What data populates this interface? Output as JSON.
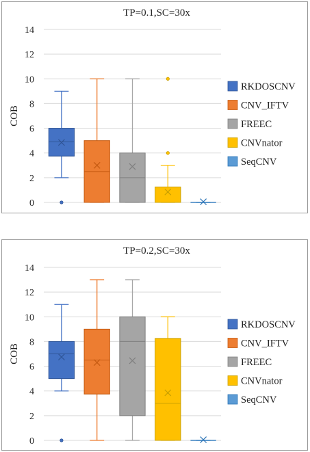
{
  "chart_data": [
    {
      "type": "box",
      "title": "TP=0.1,SC=30x",
      "ylabel": "COB",
      "xlabel": "",
      "ylim": [
        0,
        14
      ],
      "yticks": [
        "0",
        "2",
        "4",
        "6",
        "8",
        "10",
        "12",
        "14"
      ],
      "grid": true,
      "legend_position": "right",
      "legend": [
        "RKDOSCNV",
        "CNV_IFTV",
        "FREEC",
        "CNVnator",
        "SeqCNV"
      ],
      "series": [
        {
          "name": "RKDOSCNV",
          "color": "#4472c4",
          "edge": "#2f5597",
          "min": 2,
          "q1": 3.75,
          "median": 4.9,
          "q3": 6,
          "max": 9,
          "mean": 4.85,
          "outliers": [
            0
          ]
        },
        {
          "name": "CNV_IFTV",
          "color": "#ed7d31",
          "edge": "#c55a11",
          "min": 0,
          "q1": 0,
          "median": 2.5,
          "q3": 5,
          "max": 10,
          "mean": 3.0,
          "outliers": []
        },
        {
          "name": "FREEC",
          "color": "#a5a5a5",
          "edge": "#7f7f7f",
          "min": 0,
          "q1": 0,
          "median": 2,
          "q3": 4,
          "max": 10,
          "mean": 2.9,
          "outliers": []
        },
        {
          "name": "CNVnator",
          "color": "#ffc000",
          "edge": "#c9a000",
          "min": 0,
          "q1": 0,
          "median": 0,
          "q3": 1.25,
          "max": 3,
          "mean": 0.85,
          "outliers": [
            4,
            10
          ]
        },
        {
          "name": "SeqCNV",
          "color": "#5b9bd5",
          "edge": "#2e75b6",
          "min": 0,
          "q1": 0,
          "median": 0,
          "q3": 0,
          "max": 0,
          "mean": 0.05,
          "outliers": []
        }
      ]
    },
    {
      "type": "box",
      "title": "TP=0.2,SC=30x",
      "ylabel": "COB",
      "xlabel": "",
      "ylim": [
        0,
        14
      ],
      "yticks": [
        "0",
        "2",
        "4",
        "6",
        "8",
        "10",
        "12",
        "14"
      ],
      "grid": true,
      "legend_position": "right",
      "legend": [
        "RKDOSCNV",
        "CNV_IFTV",
        "FREEC",
        "CNVnator",
        "SeqCNV"
      ],
      "series": [
        {
          "name": "RKDOSCNV",
          "color": "#4472c4",
          "edge": "#2f5597",
          "min": 4,
          "q1": 5,
          "median": 7,
          "q3": 8,
          "max": 11,
          "mean": 6.75,
          "outliers": [
            0
          ]
        },
        {
          "name": "CNV_IFTV",
          "color": "#ed7d31",
          "edge": "#c55a11",
          "min": 0,
          "q1": 3.75,
          "median": 6.5,
          "q3": 9,
          "max": 13,
          "mean": 6.3,
          "outliers": []
        },
        {
          "name": "FREEC",
          "color": "#a5a5a5",
          "edge": "#7f7f7f",
          "min": 0,
          "q1": 2,
          "median": 8,
          "q3": 10,
          "max": 13,
          "mean": 6.45,
          "outliers": []
        },
        {
          "name": "CNVnator",
          "color": "#ffc000",
          "edge": "#c9a000",
          "min": 0,
          "q1": 0,
          "median": 3,
          "q3": 8.25,
          "max": 10,
          "mean": 3.85,
          "outliers": []
        },
        {
          "name": "SeqCNV",
          "color": "#5b9bd5",
          "edge": "#2e75b6",
          "min": 0,
          "q1": 0,
          "median": 0,
          "q3": 0,
          "max": 0,
          "mean": 0.05,
          "outliers": []
        }
      ]
    }
  ]
}
